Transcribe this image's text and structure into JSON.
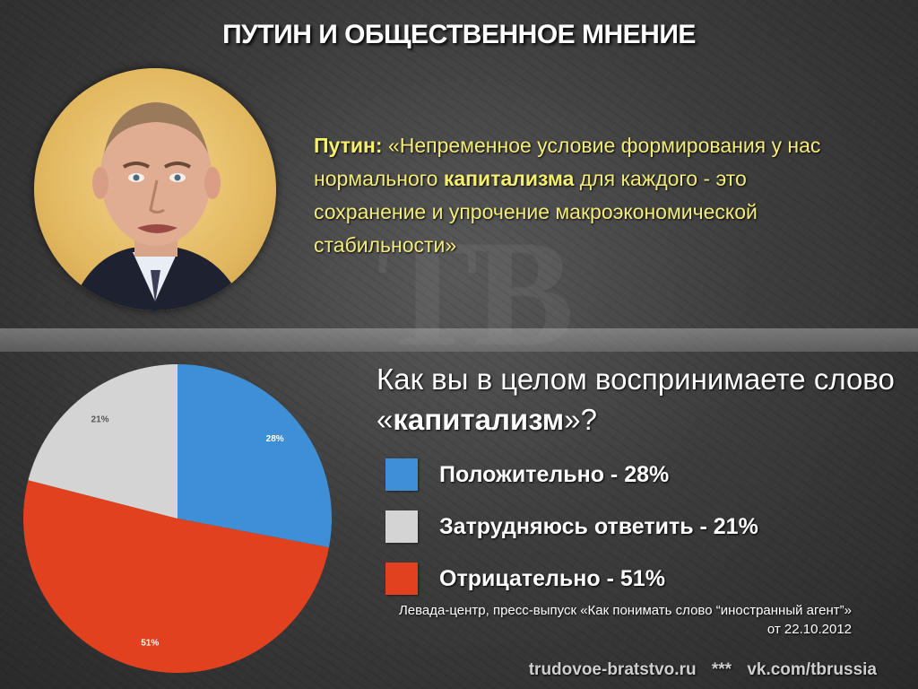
{
  "title": "ПУТИН И ОБЩЕСТВЕННОЕ МНЕНИЕ",
  "quote": {
    "speaker": "Путин:",
    "part1": "«Непременное условие формирования у нас нормального",
    "highlight": "капитализма",
    "part2": "для каждого - это сохранение и упрочение макроэкономической стабильности»"
  },
  "question": {
    "text1": "Как вы в целом воспринимаете слово «",
    "highlight": "капитализм",
    "text2": "»?"
  },
  "source": {
    "line1": "Левада-центр, пресс-выпуск «Как понимать слово “иностранный агент”»",
    "line2": "от 22.10.2012"
  },
  "footer": {
    "site": "trudovoe-bratstvo.ru",
    "separator": "***",
    "vk": "vk.com/tbrussia"
  },
  "colors": {
    "positive": "#3f8fd6",
    "undecided": "#d4d4d4",
    "negative": "#e2411f",
    "quote": "#f4ec7a"
  },
  "icons": {
    "portrait": "person-portrait"
  },
  "chart_data": {
    "type": "pie",
    "title": "",
    "slices": [
      {
        "name": "Положительно - 28%",
        "value": 28,
        "label": "28%",
        "color": "#3f8fd6"
      },
      {
        "name": "Отрицательно - 51%",
        "value": 51,
        "label": "51%",
        "color": "#e2411f"
      },
      {
        "name": "Затрудняюсь ответить - 21%",
        "value": 21,
        "label": "21%",
        "color": "#d4d4d4"
      }
    ],
    "legend_order": [
      0,
      2,
      1
    ],
    "legend_position": "right"
  }
}
